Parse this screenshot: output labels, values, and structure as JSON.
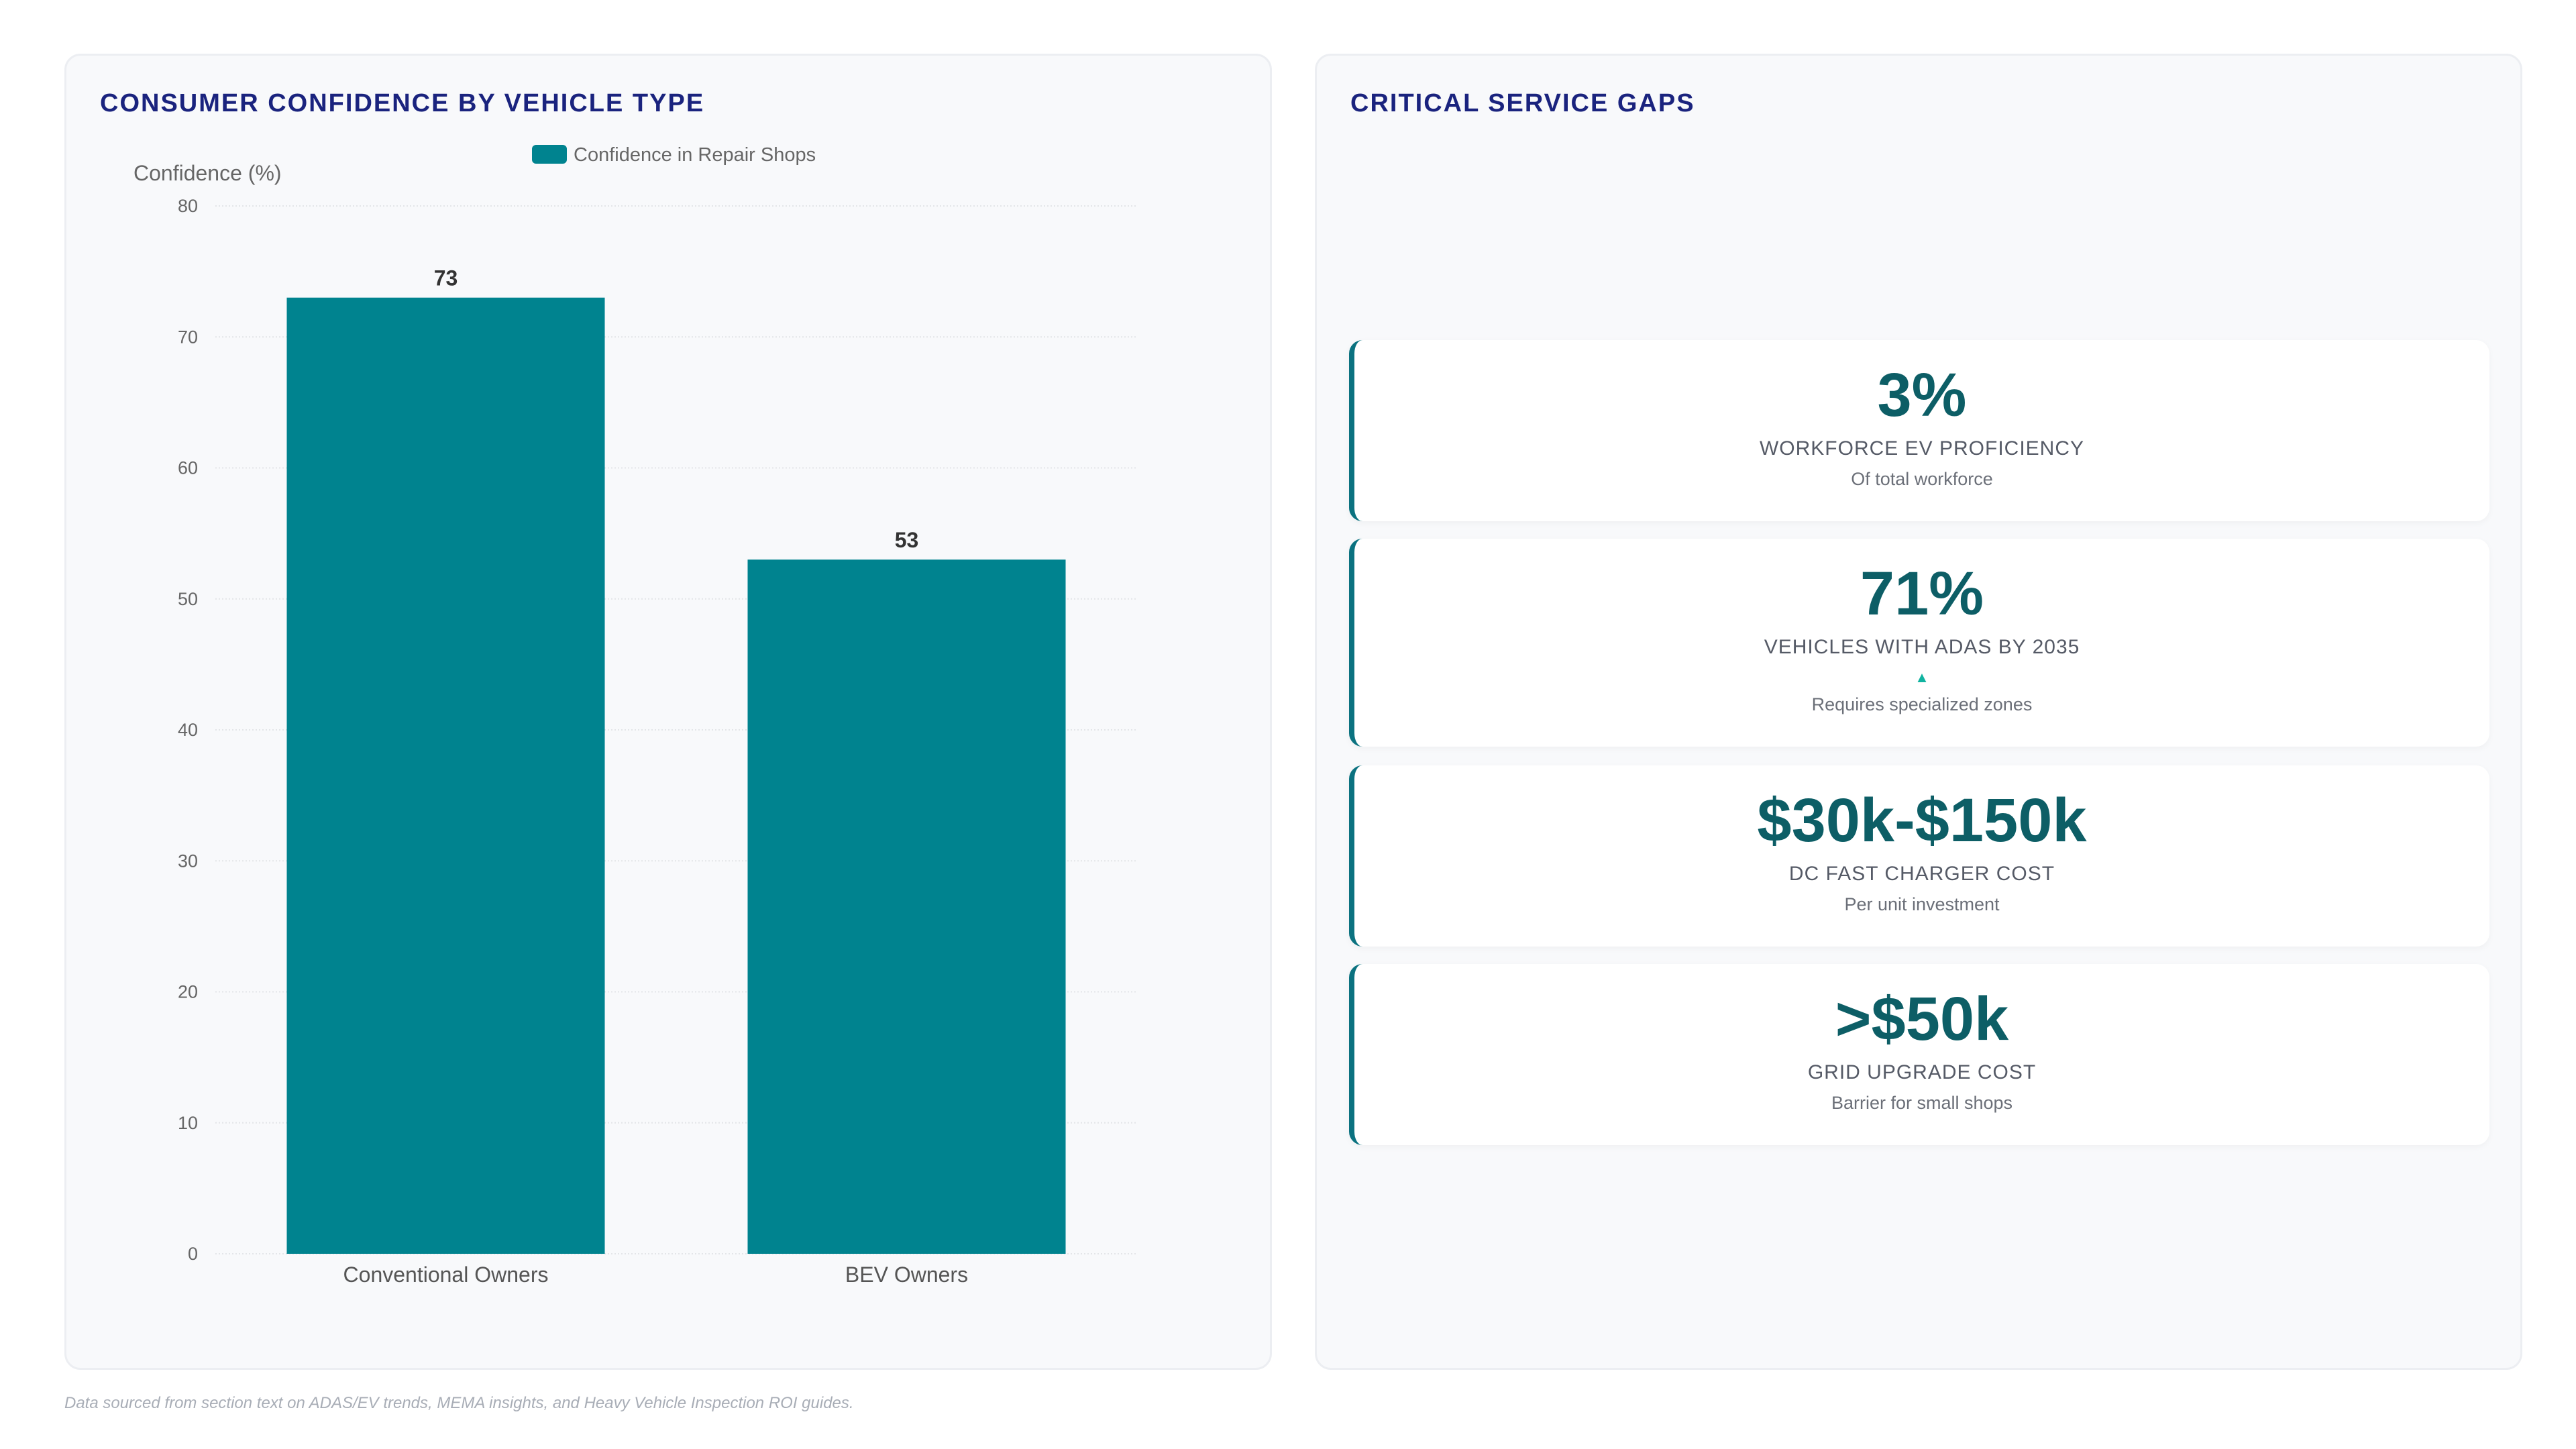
{
  "left_panel": {
    "title": "CONSUMER CONFIDENCE BY VEHICLE TYPE"
  },
  "chart_data": {
    "type": "bar",
    "categories": [
      "Conventional Owners",
      "BEV Owners"
    ],
    "series": [
      {
        "name": "Confidence in Repair Shops",
        "values": [
          73,
          53
        ],
        "color": "#00838f"
      }
    ],
    "ylabel": "Confidence (%)",
    "ylim": [
      0,
      80
    ],
    "yticks": [
      0,
      10,
      20,
      30,
      40,
      50,
      60,
      70,
      80
    ],
    "grid": true,
    "legend": "top-center",
    "data_labels": true
  },
  "right_panel": {
    "title": "CRITICAL SERVICE GAPS",
    "metrics": [
      {
        "value": "3%",
        "label": "WORKFORCE EV PROFICIENCY",
        "sub": "Of total workforce"
      },
      {
        "value": "71%",
        "label": "VEHICLES WITH ADAS BY 2035",
        "indicator": "▲",
        "sub": "Requires specialized zones"
      },
      {
        "value": "$30k-$150k",
        "label": "DC FAST CHARGER COST",
        "sub": "Per unit investment"
      },
      {
        "value": ">$50k",
        "label": "GRID UPGRADE COST",
        "sub": "Barrier for small shops"
      }
    ]
  },
  "footer": {
    "note": "Data sourced from section text on ADAS/EV trends, MEMA insights, and Heavy Vehicle Inspection ROI guides."
  },
  "colors": {
    "title": "#1a237e",
    "bar": "#00838f",
    "metric_value": "#0d5e66",
    "card_accent": "#0b7280",
    "indicator": "#10b3a0"
  }
}
